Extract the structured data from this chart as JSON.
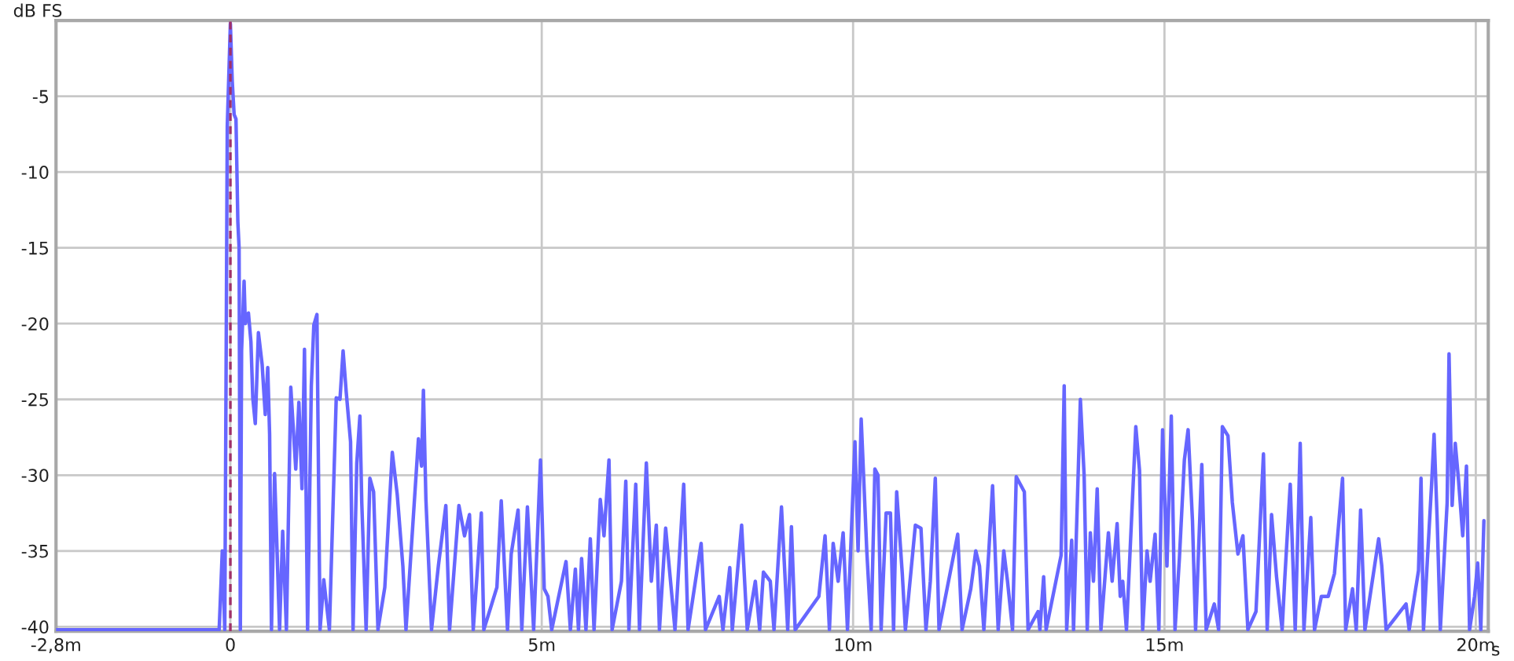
{
  "chart_data": {
    "type": "line",
    "xlabel": "s",
    "ylabel": "dB FS",
    "xlim": [
      -2.8,
      20.2
    ],
    "ylim": [
      -40.3,
      0
    ],
    "xticks": [
      {
        "value": -2.8,
        "label": "-2,8m"
      },
      0,
      {
        "value": 5,
        "label": "5m"
      },
      {
        "value": 10,
        "label": "10m"
      },
      {
        "value": 15,
        "label": "15m"
      },
      {
        "value": 20,
        "label": "20m"
      }
    ],
    "yticks": [
      -5,
      -10,
      -15,
      -20,
      -25,
      -30,
      -35,
      -40
    ],
    "grid": true,
    "legend": false,
    "line_style": "solid",
    "marker": "none",
    "ref_lines": [
      {
        "axis": "x",
        "value": 0,
        "color": "#a0306a",
        "line_style": "dashed"
      }
    ],
    "x": [
      -2.8,
      -0.18,
      -0.13,
      -0.09,
      -0.07,
      -0.05,
      0,
      0.03,
      0.06,
      0.09,
      0.12,
      0.14,
      0.16,
      0.18,
      0.22,
      0.24,
      0.29,
      0.33,
      0.36,
      0.4,
      0.45,
      0.51,
      0.56,
      0.6,
      0.63,
      0.66,
      0.71,
      0.79,
      0.84,
      0.9,
      0.97,
      1.05,
      1.1,
      1.15,
      1.19,
      1.24,
      1.3,
      1.34,
      1.39,
      1.44,
      1.5,
      1.59,
      1.7,
      1.76,
      1.81,
      1.86,
      1.93,
      1.97,
      2.03,
      2.08,
      2.11,
      2.18,
      2.24,
      2.3,
      2.37,
      2.48,
      2.6,
      2.68,
      2.77,
      2.82,
      3.02,
      3.07,
      3.1,
      3.14,
      3.23,
      3.34,
      3.46,
      3.52,
      3.67,
      3.76,
      3.84,
      3.9,
      4.03,
      4.07,
      4.28,
      4.35,
      4.45,
      4.51,
      4.62,
      4.68,
      4.77,
      4.87,
      4.98,
      5.04,
      5.1,
      5.16,
      5.39,
      5.46,
      5.54,
      5.59,
      5.64,
      5.71,
      5.78,
      5.84,
      5.94,
      6.0,
      6.08,
      6.13,
      6.28,
      6.35,
      6.4,
      6.51,
      6.57,
      6.68,
      6.76,
      6.84,
      6.89,
      6.99,
      7.14,
      7.28,
      7.35,
      7.56,
      7.63,
      7.85,
      7.91,
      8.02,
      8.06,
      8.21,
      8.3,
      8.43,
      8.5,
      8.56,
      8.67,
      8.73,
      8.85,
      8.95,
      9.01,
      9.07,
      9.45,
      9.55,
      9.62,
      9.68,
      9.76,
      9.84,
      9.91,
      10.03,
      10.08,
      10.13,
      10.22,
      10.29,
      10.35,
      10.4,
      10.45,
      10.53,
      10.6,
      10.65,
      10.7,
      10.79,
      10.84,
      11.0,
      11.09,
      11.17,
      11.24,
      11.32,
      11.38,
      11.68,
      11.75,
      11.89,
      11.97,
      12.03,
      12.1,
      12.18,
      12.24,
      12.33,
      12.42,
      12.48,
      12.56,
      12.62,
      12.75,
      12.81,
      12.97,
      13.0,
      13.06,
      13.1,
      13.34,
      13.39,
      13.43,
      13.51,
      13.54,
      13.65,
      13.71,
      13.76,
      13.81,
      13.86,
      13.92,
      13.98,
      14.1,
      14.16,
      14.24,
      14.29,
      14.33,
      14.39,
      14.54,
      14.6,
      14.65,
      14.72,
      14.77,
      14.85,
      14.91,
      14.97,
      15.04,
      15.11,
      15.17,
      15.24,
      15.32,
      15.38,
      15.45,
      15.5,
      15.6,
      15.67,
      15.8,
      15.87,
      15.93,
      16.02,
      16.09,
      16.18,
      16.26,
      16.34,
      16.47,
      16.59,
      16.65,
      16.72,
      16.8,
      16.89,
      16.93,
      17.02,
      17.1,
      17.18,
      17.24,
      17.35,
      17.41,
      17.52,
      17.63,
      17.73,
      17.86,
      17.91,
      18.02,
      18.08,
      18.15,
      18.22,
      18.44,
      18.49,
      18.56,
      18.88,
      18.93,
      19.08,
      19.12,
      19.16,
      19.29,
      19.33,
      19.38,
      19.43,
      19.54,
      19.57,
      19.62,
      19.67,
      19.72,
      19.79,
      19.85,
      19.9,
      19.98,
      20.03,
      20.08,
      20.13
    ],
    "series": [
      {
        "color": "#6666ff",
        "values": [
          -40.2,
          -40.2,
          -35.0,
          -40.2,
          -24.1,
          -7.0,
          -0.2,
          -4.0,
          -6.2,
          -6.5,
          -13.3,
          -15.0,
          -40.2,
          -21.8,
          -17.2,
          -20.0,
          -19.3,
          -21.2,
          -24.9,
          -26.6,
          -20.6,
          -22.7,
          -26.0,
          -22.9,
          -27.3,
          -40.2,
          -29.9,
          -40.2,
          -33.7,
          -40.2,
          -24.2,
          -29.6,
          -25.2,
          -30.9,
          -21.7,
          -40.2,
          -24.1,
          -20.1,
          -19.4,
          -40.2,
          -36.9,
          -40.2,
          -24.9,
          -25.0,
          -21.8,
          -24.5,
          -27.8,
          -40.2,
          -29.2,
          -26.1,
          -31.8,
          -40.2,
          -30.2,
          -31.1,
          -40.2,
          -37.4,
          -28.5,
          -31.3,
          -36.0,
          -40.2,
          -27.6,
          -29.4,
          -24.4,
          -31.6,
          -40.2,
          -36.0,
          -32.0,
          -40.2,
          -32.0,
          -34.0,
          -32.6,
          -40.2,
          -32.5,
          -40.2,
          -37.4,
          -31.7,
          -40.2,
          -35.2,
          -32.3,
          -40.2,
          -32.1,
          -40.2,
          -29.0,
          -37.5,
          -38.0,
          -40.2,
          -35.7,
          -40.2,
          -36.2,
          -40.2,
          -35.5,
          -40.2,
          -34.2,
          -40.2,
          -31.6,
          -34.0,
          -29.0,
          -40.2,
          -37.0,
          -30.4,
          -40.2,
          -30.6,
          -40.2,
          -29.2,
          -37.0,
          -33.3,
          -40.2,
          -33.5,
          -40.2,
          -30.6,
          -40.2,
          -34.5,
          -40.2,
          -38.0,
          -40.2,
          -36.1,
          -40.2,
          -33.3,
          -40.2,
          -37.0,
          -40.2,
          -36.4,
          -37.0,
          -40.2,
          -32.1,
          -40.2,
          -33.4,
          -40.2,
          -38.0,
          -34.0,
          -40.2,
          -34.5,
          -37.0,
          -33.8,
          -40.2,
          -27.8,
          -35.0,
          -26.3,
          -35.0,
          -40.2,
          -29.6,
          -30.0,
          -40.2,
          -32.5,
          -32.5,
          -40.2,
          -31.1,
          -36.5,
          -40.2,
          -33.3,
          -33.5,
          -40.2,
          -37.0,
          -30.2,
          -40.2,
          -33.9,
          -40.2,
          -37.5,
          -35.0,
          -36.0,
          -40.2,
          -35.0,
          -30.7,
          -40.2,
          -35.0,
          -37.0,
          -40.2,
          -30.1,
          -31.1,
          -40.2,
          -39.0,
          -40.2,
          -36.7,
          -40.2,
          -35.3,
          -24.1,
          -40.2,
          -34.3,
          -40.2,
          -25.0,
          -30.0,
          -40.2,
          -33.8,
          -37.0,
          -30.9,
          -40.2,
          -33.8,
          -37.0,
          -33.2,
          -38.0,
          -37.0,
          -40.2,
          -26.8,
          -29.7,
          -40.2,
          -35.0,
          -37.0,
          -33.9,
          -40.2,
          -27.0,
          -36.0,
          -26.1,
          -40.2,
          -35.5,
          -29.0,
          -27.0,
          -33.0,
          -40.2,
          -29.3,
          -40.2,
          -38.5,
          -40.2,
          -26.8,
          -27.4,
          -31.8,
          -35.2,
          -34.0,
          -40.2,
          -39.0,
          -28.6,
          -40.2,
          -32.6,
          -36.7,
          -40.2,
          -37.0,
          -30.6,
          -40.2,
          -27.9,
          -40.2,
          -32.8,
          -40.2,
          -38.0,
          -38.0,
          -36.5,
          -30.2,
          -40.2,
          -37.5,
          -40.2,
          -32.3,
          -40.2,
          -34.2,
          -36.0,
          -40.2,
          -38.5,
          -40.2,
          -36.3,
          -30.2,
          -40.2,
          -30.6,
          -27.3,
          -33.0,
          -40.2,
          -31.8,
          -22.0,
          -32.0,
          -27.9,
          -30.2,
          -34.0,
          -29.4,
          -40.2,
          -38.0,
          -35.8,
          -40.2,
          -33.0
        ]
      }
    ]
  }
}
